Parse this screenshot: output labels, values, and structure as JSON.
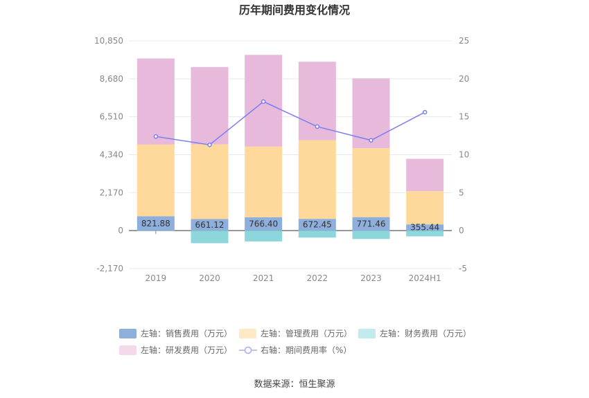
{
  "chart_data": {
    "type": "bar",
    "title": "历年期间费用变化情况",
    "categories": [
      "2019",
      "2020",
      "2021",
      "2022",
      "2023",
      "2024H1"
    ],
    "left_axis": {
      "ylim": [
        -2170,
        10850
      ],
      "ticks": [
        "-2,170",
        "0",
        "2,170",
        "4,340",
        "6,510",
        "8,680",
        "10,850"
      ],
      "tick_values": [
        -2170,
        0,
        2170,
        4340,
        6510,
        8680,
        10850
      ]
    },
    "right_axis": {
      "ylim": [
        -5,
        25
      ],
      "ticks": [
        "-5",
        "0",
        "5",
        "10",
        "15",
        "20",
        "25"
      ],
      "tick_values": [
        -5,
        0,
        5,
        10,
        15,
        20,
        25
      ]
    },
    "series": [
      {
        "name": "左轴：销售费用（万元）",
        "axis": "left",
        "stack": "fee",
        "color": "#8eaedb",
        "values": [
          821.88,
          661.12,
          766.4,
          672.45,
          771.46,
          355.44
        ],
        "labels": [
          "821.88",
          "661.12",
          "766.40",
          "672.45",
          "771.46",
          "355.44"
        ]
      },
      {
        "name": "左轴：管理费用（万元）",
        "axis": "left",
        "stack": "fee",
        "color": "#ffd99b",
        "values": [
          4100,
          4270,
          4040,
          4500,
          3940,
          1900
        ]
      },
      {
        "name": "左轴：财务费用（万元）",
        "axis": "left",
        "stack": "fee",
        "color": "#8dd6db",
        "values": [
          -20,
          -720,
          -620,
          -400,
          -480,
          -330
        ]
      },
      {
        "name": "左轴：研发费用（万元）",
        "axis": "left",
        "stack": "fee",
        "color": "#e7b9da",
        "values": [
          4920,
          4420,
          5240,
          4480,
          3990,
          1850
        ]
      },
      {
        "name": "右轴：期间费用率（%）",
        "axis": "right",
        "type": "line",
        "color": "#7b7ff0",
        "values": [
          12.4,
          11.3,
          17.0,
          13.7,
          11.9,
          15.6
        ]
      }
    ],
    "legend_position": "bottom",
    "grid": true
  },
  "footer": {
    "source": "数据来源：恒生聚源"
  }
}
